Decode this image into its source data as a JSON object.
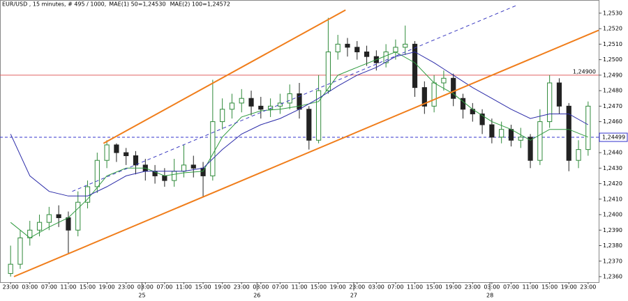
{
  "chart_data": {
    "type": "candlestick",
    "title": "EUR/USD , 15 minutes, # 495 / 1000,",
    "up_color": "#2f8a3a",
    "down_color": "#222222",
    "x": [
      0,
      2,
      4,
      6,
      8,
      10,
      12,
      14,
      16,
      18,
      20,
      22,
      24,
      26,
      28,
      30,
      32,
      34,
      36,
      38,
      40,
      42,
      44,
      46,
      48,
      50,
      52,
      54,
      56,
      58,
      60,
      62,
      64,
      66,
      68,
      70,
      72,
      74,
      76,
      78,
      80,
      82,
      84,
      86,
      88,
      90,
      92,
      94,
      96,
      98,
      100,
      102,
      104,
      106,
      108,
      110,
      112,
      114,
      116,
      118,
      120
    ],
    "open": [
      1.2362,
      1.2368,
      1.2385,
      1.239,
      1.2395,
      1.24,
      1.2398,
      1.239,
      1.2408,
      1.2418,
      1.2435,
      1.2445,
      1.244,
      1.2438,
      1.2432,
      1.2428,
      1.2425,
      1.2422,
      1.2428,
      1.2432,
      1.243,
      1.2425,
      1.246,
      1.2468,
      1.2472,
      1.2475,
      1.247,
      1.2468,
      1.247,
      1.2472,
      1.2478,
      1.2468,
      1.2448,
      1.248,
      1.2505,
      1.251,
      1.2508,
      1.2505,
      1.2502,
      1.2498,
      1.2505,
      1.2508,
      1.251,
      1.2482,
      1.247,
      1.2485,
      1.2488,
      1.2475,
      1.2468,
      1.2465,
      1.2458,
      1.245,
      1.2455,
      1.2448,
      1.245,
      1.2435,
      1.246,
      1.2485,
      1.247,
      1.2435,
      1.2442
    ],
    "high": [
      1.238,
      1.239,
      1.2396,
      1.24,
      1.2405,
      1.2406,
      1.2402,
      1.2415,
      1.2422,
      1.244,
      1.2448,
      1.2446,
      1.2443,
      1.2441,
      1.2436,
      1.2432,
      1.243,
      1.2436,
      1.2445,
      1.2438,
      1.2434,
      1.2487,
      1.2475,
      1.2478,
      1.2481,
      1.248,
      1.2476,
      1.2475,
      1.2478,
      1.2484,
      1.2485,
      1.247,
      1.249,
      1.2527,
      1.2516,
      1.2514,
      1.2512,
      1.2509,
      1.2506,
      1.251,
      1.2513,
      1.2522,
      1.2512,
      1.2486,
      1.249,
      1.2493,
      1.2491,
      1.2478,
      1.2472,
      1.2468,
      1.2462,
      1.246,
      1.2458,
      1.2456,
      1.2452,
      1.2468,
      1.249,
      1.2488,
      1.2472,
      1.2448,
      1.2473
    ],
    "low": [
      1.236,
      1.2365,
      1.238,
      1.2386,
      1.239,
      1.2392,
      1.2375,
      1.2386,
      1.2404,
      1.2414,
      1.243,
      1.2434,
      1.2432,
      1.2426,
      1.2422,
      1.242,
      1.2418,
      1.2418,
      1.2424,
      1.2424,
      1.2411,
      1.2422,
      1.2455,
      1.2462,
      1.2466,
      1.2464,
      1.2462,
      1.2463,
      1.2465,
      1.2468,
      1.2462,
      1.2442,
      1.2446,
      1.2478,
      1.25,
      1.2502,
      1.25,
      1.2496,
      1.2493,
      1.2495,
      1.25,
      1.2503,
      1.2476,
      1.2465,
      1.2466,
      1.248,
      1.247,
      1.2462,
      1.246,
      1.2452,
      1.2446,
      1.2446,
      1.2444,
      1.2443,
      1.243,
      1.2432,
      1.2456,
      1.2465,
      1.2428,
      1.243,
      1.2438
    ],
    "close": [
      1.2368,
      1.2385,
      1.239,
      1.2395,
      1.24,
      1.2398,
      1.239,
      1.2408,
      1.2418,
      1.2435,
      1.2445,
      1.244,
      1.2438,
      1.2432,
      1.2428,
      1.2425,
      1.2422,
      1.2428,
      1.2432,
      1.243,
      1.2425,
      1.246,
      1.2468,
      1.2472,
      1.2475,
      1.247,
      1.2468,
      1.247,
      1.2472,
      1.2478,
      1.2468,
      1.2448,
      1.248,
      1.2505,
      1.251,
      1.2508,
      1.2505,
      1.2502,
      1.2498,
      1.2505,
      1.2508,
      1.251,
      1.2482,
      1.247,
      1.2485,
      1.2488,
      1.2475,
      1.2468,
      1.2465,
      1.2458,
      1.245,
      1.2455,
      1.2448,
      1.245,
      1.2435,
      1.246,
      1.2485,
      1.247,
      1.2435,
      1.2442,
      1.247
    ],
    "series": [
      {
        "name": "MAE(1) 50=1,24530",
        "color": "#2e9a3e",
        "x": [
          0,
          4,
          8,
          12,
          16,
          20,
          24,
          28,
          32,
          36,
          40,
          44,
          48,
          52,
          56,
          60,
          64,
          68,
          72,
          76,
          80,
          84,
          88,
          92,
          96,
          100,
          104,
          108,
          112,
          116,
          120
        ],
        "values": [
          1.2395,
          1.2385,
          1.2392,
          1.2398,
          1.241,
          1.2425,
          1.243,
          1.243,
          1.2425,
          1.2427,
          1.2428,
          1.245,
          1.2463,
          1.2467,
          1.2468,
          1.247,
          1.2473,
          1.249,
          1.2495,
          1.25,
          1.2505,
          1.2498,
          1.2485,
          1.2478,
          1.2468,
          1.246,
          1.2455,
          1.2448,
          1.2455,
          1.2455,
          1.245
        ]
      },
      {
        "name": "MAE(2) 100=1,24572",
        "color": "#2a2aa8",
        "x": [
          0,
          4,
          8,
          12,
          16,
          20,
          24,
          28,
          32,
          36,
          40,
          44,
          48,
          52,
          56,
          60,
          64,
          68,
          72,
          76,
          80,
          84,
          88,
          92,
          96,
          100,
          104,
          108,
          112,
          116,
          120
        ],
        "values": [
          1.2452,
          1.2425,
          1.2415,
          1.2412,
          1.2412,
          1.2418,
          1.2425,
          1.2428,
          1.2428,
          1.2428,
          1.243,
          1.2442,
          1.2452,
          1.2458,
          1.2462,
          1.2468,
          1.2475,
          1.2483,
          1.249,
          1.2495,
          1.2502,
          1.2505,
          1.2498,
          1.249,
          1.2482,
          1.2475,
          1.2468,
          1.2462,
          1.2465,
          1.2465,
          1.2458
        ]
      }
    ],
    "lines": [
      {
        "color": "#f07d1a",
        "dashed": false,
        "x": [
          0.7,
          122.2
        ],
        "values": [
          1.236,
          1.2519
        ]
      },
      {
        "color": "#f07d1a",
        "dashed": false,
        "x": [
          19.3,
          69.6
        ],
        "values": [
          1.2446,
          1.2532
        ]
      },
      {
        "color": "#3a3ac0",
        "dashed": true,
        "x": [
          12.8,
          105.1
        ],
        "values": [
          1.2415,
          1.2535
        ]
      }
    ],
    "levels": [
      {
        "value": 1.249,
        "label": "1,24900",
        "color": "#e06060",
        "dashed": false
      },
      {
        "value": 1.24499,
        "label": "1,24499",
        "color": "#3333cc",
        "dashed": true
      }
    ],
    "xlim": [
      -2.2,
      122.2
    ],
    "ylim": [
      1.23564,
      1.25349
    ],
    "xticks": [
      {
        "value": 0,
        "label": "23:00"
      },
      {
        "value": 4,
        "label": "03:00"
      },
      {
        "value": 8,
        "label": "07:00"
      },
      {
        "value": 12,
        "label": "11:00"
      },
      {
        "value": 16,
        "label": "15:00"
      },
      {
        "value": 20,
        "label": "19:00"
      },
      {
        "value": 24,
        "label": "23:00"
      },
      {
        "value": 28,
        "label": "03:00"
      },
      {
        "value": 32,
        "label": "07:00"
      },
      {
        "value": 36,
        "label": "11:00"
      },
      {
        "value": 40,
        "label": "15:00"
      },
      {
        "value": 44,
        "label": "19:00"
      },
      {
        "value": 48,
        "label": "23:00"
      },
      {
        "value": 52,
        "label": "03:00"
      },
      {
        "value": 56,
        "label": "07:00"
      },
      {
        "value": 60,
        "label": "11:00"
      },
      {
        "value": 64,
        "label": "15:00"
      },
      {
        "value": 68,
        "label": "19:00"
      },
      {
        "value": 72,
        "label": "23:00"
      },
      {
        "value": 76,
        "label": "03:00"
      },
      {
        "value": 80,
        "label": "07:00"
      },
      {
        "value": 84,
        "label": "11:00"
      },
      {
        "value": 88,
        "label": "15:00"
      },
      {
        "value": 92,
        "label": "19:00"
      },
      {
        "value": 96,
        "label": "23:00"
      },
      {
        "value": 100,
        "label": "03:00"
      },
      {
        "value": 104,
        "label": "07:00"
      },
      {
        "value": 108,
        "label": "11:00"
      },
      {
        "value": 112,
        "label": "15:00"
      },
      {
        "value": 116,
        "label": "19:00"
      },
      {
        "value": 120,
        "label": "23:00"
      }
    ],
    "day_ticks": [
      {
        "value": 27.3,
        "label": "25"
      },
      {
        "value": 51.2,
        "label": "26"
      },
      {
        "value": 71.3,
        "label": "27"
      },
      {
        "value": 99.6,
        "label": "28"
      }
    ],
    "yticks": [
      {
        "value": 1.253,
        "label": "1,2530"
      },
      {
        "value": 1.252,
        "label": "1,2520"
      },
      {
        "value": 1.251,
        "label": "1,2510"
      },
      {
        "value": 1.25,
        "label": "1,2500"
      },
      {
        "value": 1.249,
        "label": "1,2490"
      },
      {
        "value": 1.248,
        "label": "1,2480"
      },
      {
        "value": 1.247,
        "label": "1,2470"
      },
      {
        "value": 1.246,
        "label": "1,2460"
      },
      {
        "value": 1.245,
        "label": "1,2450"
      },
      {
        "value": 1.244,
        "label": "1,2440"
      },
      {
        "value": 1.243,
        "label": "1,2430"
      },
      {
        "value": 1.242,
        "label": "1,2420"
      },
      {
        "value": 1.241,
        "label": "1,2410"
      },
      {
        "value": 1.24,
        "label": "1,2400"
      },
      {
        "value": 1.239,
        "label": "1,2390"
      },
      {
        "value": 1.238,
        "label": "1,2380"
      },
      {
        "value": 1.237,
        "label": "1,2370"
      },
      {
        "value": 1.236,
        "label": "1,2360"
      }
    ]
  }
}
